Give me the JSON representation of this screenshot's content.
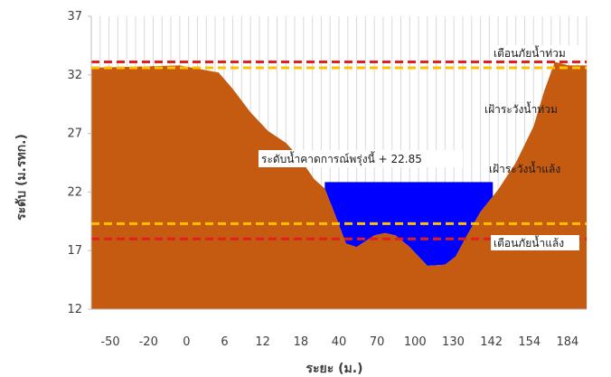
{
  "chart_data": {
    "type": "area",
    "title": "",
    "xlabel": "ระยะ (ม.)",
    "ylabel": "ระดับ (ม.รทก.)",
    "ylim": [
      12,
      37
    ],
    "yticks": [
      "12",
      "17",
      "22",
      "27",
      "32",
      "37"
    ],
    "xticks": [
      "-50",
      "-20",
      "0",
      "6",
      "12",
      "18",
      "40",
      "70",
      "100",
      "130",
      "142",
      "154",
      "184"
    ],
    "grid": "vertical",
    "legend": "none",
    "series": [
      {
        "kind": "riverbed",
        "color": "#C55A11",
        "points": [
          [
            0,
            32.6
          ],
          [
            2.5,
            32.8
          ],
          [
            3.6,
            32.2
          ],
          [
            4.0,
            30.8
          ],
          [
            4.5,
            28.8
          ],
          [
            5.0,
            27.2
          ],
          [
            5.5,
            26.2
          ],
          [
            5.8,
            25.2
          ],
          [
            6.0,
            24.4
          ],
          [
            6.3,
            23.1
          ],
          [
            6.6,
            22.3
          ],
          [
            6.9,
            20.0
          ],
          [
            7.2,
            17.6
          ],
          [
            7.5,
            17.3
          ],
          [
            8.0,
            18.3
          ],
          [
            8.3,
            18.5
          ],
          [
            8.6,
            18.3
          ],
          [
            9.0,
            17.3
          ],
          [
            9.5,
            15.7
          ],
          [
            10.0,
            15.8
          ],
          [
            10.3,
            16.5
          ],
          [
            10.6,
            18.2
          ],
          [
            11.0,
            20.3
          ],
          [
            11.5,
            22.2
          ],
          [
            12.0,
            24.5
          ],
          [
            12.5,
            27.6
          ],
          [
            12.8,
            30.6
          ],
          [
            13.1,
            33.1
          ],
          [
            13.5,
            32.8
          ],
          [
            14,
            32.8
          ]
        ]
      },
      {
        "kind": "water",
        "color": "#0000FF",
        "level": 22.85,
        "x_range": [
          6.6,
          11.35
        ]
      }
    ],
    "reference_lines": [
      {
        "name": "เตือนภัยน้ำท่วม",
        "value": 33.1,
        "color": "#E02020"
      },
      {
        "name": "เฝ้าระวังน้ำท่วม",
        "value": 32.6,
        "color": "#FFC000"
      },
      {
        "name": "เฝ้าระวังน้ำแล้ง",
        "value": 19.3,
        "color": "#FFC000"
      },
      {
        "name": "เตือนภัยน้ำแล้ง",
        "value": 18.0,
        "color": "#E02020"
      }
    ],
    "annotations": {
      "water_level_label": "ระดับน้ำคาดการณ์พรุ่งนี้ + 22.85",
      "flood_warning": "เตือนภัยน้ำท่วม",
      "flood_watch": "เฝ้าระวังน้ำท่วม",
      "drought_watch": "เฝ้าระวังน้ำแล้ง",
      "drought_warning": "เตือนภัยน้ำแล้ง"
    }
  }
}
